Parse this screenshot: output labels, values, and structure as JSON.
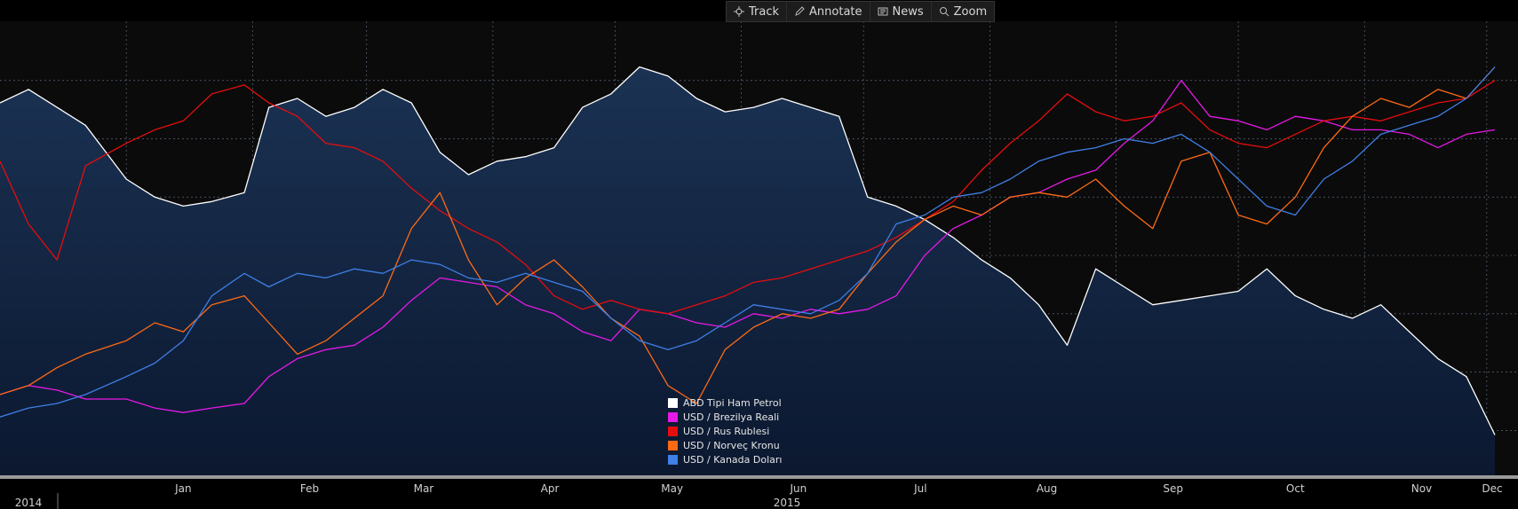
{
  "toolbar": {
    "items": [
      {
        "label": "Track",
        "icon": "crosshair-icon"
      },
      {
        "label": "Annotate",
        "icon": "pencil-icon"
      },
      {
        "label": "News",
        "icon": "news-icon"
      },
      {
        "label": "Zoom",
        "icon": "magnifier-icon"
      }
    ]
  },
  "colors": {
    "background": "#000000",
    "area_top": "#1b3253",
    "area_bottom": "#0b1830",
    "grid": "#5a6a80"
  },
  "chart_data": {
    "type": "line",
    "title": "",
    "xlabel": "",
    "ylabel": "",
    "grid": true,
    "legend_position": "bottom-center",
    "x_range": [
      "2014-12-01",
      "2015-12-03"
    ],
    "x_ticks": [
      "Jan",
      "Feb",
      "Mar",
      "Apr",
      "May",
      "Jun",
      "Jul",
      "Aug",
      "Sep",
      "Oct",
      "Nov",
      "Dec"
    ],
    "year_labels": [
      "2014",
      "2015"
    ],
    "y_range": [
      0,
      100
    ],
    "series": [
      {
        "name": "ABD Tipi Ham Petrol",
        "color": "#ffffff",
        "area": true,
        "points": [
          [
            "2014-12-01",
            83
          ],
          [
            "2014-12-08",
            86
          ],
          [
            "2014-12-15",
            82
          ],
          [
            "2014-12-22",
            78
          ],
          [
            "2015-01-01",
            66
          ],
          [
            "2015-01-08",
            62
          ],
          [
            "2015-01-15",
            60
          ],
          [
            "2015-01-22",
            61
          ],
          [
            "2015-01-30",
            63
          ],
          [
            "2015-02-05",
            82
          ],
          [
            "2015-02-12",
            84
          ],
          [
            "2015-02-19",
            80
          ],
          [
            "2015-02-26",
            82
          ],
          [
            "2015-03-05",
            86
          ],
          [
            "2015-03-12",
            83
          ],
          [
            "2015-03-19",
            72
          ],
          [
            "2015-03-26",
            67
          ],
          [
            "2015-04-02",
            70
          ],
          [
            "2015-04-09",
            71
          ],
          [
            "2015-04-16",
            73
          ],
          [
            "2015-04-23",
            82
          ],
          [
            "2015-04-30",
            85
          ],
          [
            "2015-05-07",
            91
          ],
          [
            "2015-05-14",
            89
          ],
          [
            "2015-05-21",
            84
          ],
          [
            "2015-05-28",
            81
          ],
          [
            "2015-06-04",
            82
          ],
          [
            "2015-06-11",
            84
          ],
          [
            "2015-06-18",
            82
          ],
          [
            "2015-06-25",
            80
          ],
          [
            "2015-07-02",
            62
          ],
          [
            "2015-07-09",
            60
          ],
          [
            "2015-07-16",
            57
          ],
          [
            "2015-07-23",
            53
          ],
          [
            "2015-07-30",
            48
          ],
          [
            "2015-08-06",
            44
          ],
          [
            "2015-08-13",
            38
          ],
          [
            "2015-08-20",
            29
          ],
          [
            "2015-08-27",
            46
          ],
          [
            "2015-09-03",
            42
          ],
          [
            "2015-09-10",
            38
          ],
          [
            "2015-09-17",
            39
          ],
          [
            "2015-09-24",
            40
          ],
          [
            "2015-10-01",
            41
          ],
          [
            "2015-10-08",
            46
          ],
          [
            "2015-10-15",
            40
          ],
          [
            "2015-10-22",
            37
          ],
          [
            "2015-10-29",
            35
          ],
          [
            "2015-11-05",
            38
          ],
          [
            "2015-11-12",
            32
          ],
          [
            "2015-11-19",
            26
          ],
          [
            "2015-11-26",
            22
          ],
          [
            "2015-12-03",
            9
          ]
        ]
      },
      {
        "name": "USD / Brezilya Reali",
        "color": "#e619e6",
        "area": false,
        "points": [
          [
            "2014-12-01",
            18
          ],
          [
            "2014-12-08",
            20
          ],
          [
            "2014-12-15",
            19
          ],
          [
            "2014-12-22",
            17
          ],
          [
            "2015-01-01",
            17
          ],
          [
            "2015-01-08",
            15
          ],
          [
            "2015-01-15",
            14
          ],
          [
            "2015-01-22",
            15
          ],
          [
            "2015-01-30",
            16
          ],
          [
            "2015-02-05",
            22
          ],
          [
            "2015-02-12",
            26
          ],
          [
            "2015-02-19",
            28
          ],
          [
            "2015-02-26",
            29
          ],
          [
            "2015-03-05",
            33
          ],
          [
            "2015-03-12",
            39
          ],
          [
            "2015-03-19",
            44
          ],
          [
            "2015-03-26",
            43
          ],
          [
            "2015-04-02",
            42
          ],
          [
            "2015-04-09",
            38
          ],
          [
            "2015-04-16",
            36
          ],
          [
            "2015-04-23",
            32
          ],
          [
            "2015-04-30",
            30
          ],
          [
            "2015-05-07",
            37
          ],
          [
            "2015-05-14",
            36
          ],
          [
            "2015-05-21",
            34
          ],
          [
            "2015-05-28",
            33
          ],
          [
            "2015-06-04",
            36
          ],
          [
            "2015-06-11",
            35
          ],
          [
            "2015-06-18",
            37
          ],
          [
            "2015-06-25",
            36
          ],
          [
            "2015-07-02",
            37
          ],
          [
            "2015-07-09",
            40
          ],
          [
            "2015-07-16",
            49
          ],
          [
            "2015-07-23",
            55
          ],
          [
            "2015-07-30",
            58
          ],
          [
            "2015-08-06",
            62
          ],
          [
            "2015-08-13",
            63
          ],
          [
            "2015-08-20",
            66
          ],
          [
            "2015-08-27",
            68
          ],
          [
            "2015-09-03",
            74
          ],
          [
            "2015-09-10",
            79
          ],
          [
            "2015-09-17",
            88
          ],
          [
            "2015-09-24",
            80
          ],
          [
            "2015-10-01",
            79
          ],
          [
            "2015-10-08",
            77
          ],
          [
            "2015-10-15",
            80
          ],
          [
            "2015-10-22",
            79
          ],
          [
            "2015-10-29",
            77
          ],
          [
            "2015-11-05",
            77
          ],
          [
            "2015-11-12",
            76
          ],
          [
            "2015-11-19",
            73
          ],
          [
            "2015-11-26",
            76
          ],
          [
            "2015-12-03",
            77
          ]
        ]
      },
      {
        "name": "USD / Rus Rublesi",
        "color": "#e60d0d",
        "area": false,
        "points": [
          [
            "2014-12-01",
            70
          ],
          [
            "2014-12-08",
            56
          ],
          [
            "2014-12-15",
            48
          ],
          [
            "2014-12-22",
            69
          ],
          [
            "2015-01-01",
            74
          ],
          [
            "2015-01-08",
            77
          ],
          [
            "2015-01-15",
            79
          ],
          [
            "2015-01-22",
            85
          ],
          [
            "2015-01-30",
            87
          ],
          [
            "2015-02-05",
            83
          ],
          [
            "2015-02-12",
            80
          ],
          [
            "2015-02-19",
            74
          ],
          [
            "2015-02-26",
            73
          ],
          [
            "2015-03-05",
            70
          ],
          [
            "2015-03-12",
            64
          ],
          [
            "2015-03-19",
            59
          ],
          [
            "2015-03-26",
            55
          ],
          [
            "2015-04-02",
            52
          ],
          [
            "2015-04-09",
            47
          ],
          [
            "2015-04-16",
            40
          ],
          [
            "2015-04-23",
            37
          ],
          [
            "2015-04-30",
            39
          ],
          [
            "2015-05-07",
            37
          ],
          [
            "2015-05-14",
            36
          ],
          [
            "2015-05-21",
            38
          ],
          [
            "2015-05-28",
            40
          ],
          [
            "2015-06-04",
            43
          ],
          [
            "2015-06-11",
            44
          ],
          [
            "2015-06-18",
            46
          ],
          [
            "2015-06-25",
            48
          ],
          [
            "2015-07-02",
            50
          ],
          [
            "2015-07-09",
            53
          ],
          [
            "2015-07-16",
            57
          ],
          [
            "2015-07-23",
            61
          ],
          [
            "2015-07-30",
            68
          ],
          [
            "2015-08-06",
            74
          ],
          [
            "2015-08-13",
            79
          ],
          [
            "2015-08-20",
            85
          ],
          [
            "2015-08-27",
            81
          ],
          [
            "2015-09-03",
            79
          ],
          [
            "2015-09-10",
            80
          ],
          [
            "2015-09-17",
            83
          ],
          [
            "2015-09-24",
            77
          ],
          [
            "2015-10-01",
            74
          ],
          [
            "2015-10-08",
            73
          ],
          [
            "2015-10-15",
            76
          ],
          [
            "2015-10-22",
            79
          ],
          [
            "2015-10-29",
            80
          ],
          [
            "2015-11-05",
            79
          ],
          [
            "2015-11-12",
            81
          ],
          [
            "2015-11-19",
            83
          ],
          [
            "2015-11-26",
            84
          ],
          [
            "2015-12-03",
            88
          ]
        ]
      },
      {
        "name": "USD / Norveç Kronu",
        "color": "#ff6a14",
        "area": false,
        "points": [
          [
            "2014-12-01",
            18
          ],
          [
            "2014-12-08",
            20
          ],
          [
            "2014-12-15",
            24
          ],
          [
            "2014-12-22",
            27
          ],
          [
            "2015-01-01",
            30
          ],
          [
            "2015-01-08",
            34
          ],
          [
            "2015-01-15",
            32
          ],
          [
            "2015-01-22",
            38
          ],
          [
            "2015-01-30",
            40
          ],
          [
            "2015-02-05",
            34
          ],
          [
            "2015-02-12",
            27
          ],
          [
            "2015-02-19",
            30
          ],
          [
            "2015-02-26",
            35
          ],
          [
            "2015-03-05",
            40
          ],
          [
            "2015-03-12",
            55
          ],
          [
            "2015-03-19",
            63
          ],
          [
            "2015-03-26",
            48
          ],
          [
            "2015-04-02",
            38
          ],
          [
            "2015-04-09",
            44
          ],
          [
            "2015-04-16",
            48
          ],
          [
            "2015-04-23",
            42
          ],
          [
            "2015-04-30",
            35
          ],
          [
            "2015-05-07",
            31
          ],
          [
            "2015-05-14",
            20
          ],
          [
            "2015-05-21",
            16
          ],
          [
            "2015-05-28",
            28
          ],
          [
            "2015-06-04",
            33
          ],
          [
            "2015-06-11",
            36
          ],
          [
            "2015-06-18",
            35
          ],
          [
            "2015-06-25",
            37
          ],
          [
            "2015-07-02",
            45
          ],
          [
            "2015-07-09",
            52
          ],
          [
            "2015-07-16",
            57
          ],
          [
            "2015-07-23",
            60
          ],
          [
            "2015-07-30",
            58
          ],
          [
            "2015-08-06",
            62
          ],
          [
            "2015-08-13",
            63
          ],
          [
            "2015-08-20",
            62
          ],
          [
            "2015-08-27",
            66
          ],
          [
            "2015-09-03",
            60
          ],
          [
            "2015-09-10",
            55
          ],
          [
            "2015-09-17",
            70
          ],
          [
            "2015-09-24",
            72
          ],
          [
            "2015-10-01",
            58
          ],
          [
            "2015-10-08",
            56
          ],
          [
            "2015-10-15",
            62
          ],
          [
            "2015-10-22",
            73
          ],
          [
            "2015-10-29",
            80
          ],
          [
            "2015-11-05",
            84
          ],
          [
            "2015-11-12",
            82
          ],
          [
            "2015-11-19",
            86
          ],
          [
            "2015-11-26",
            84
          ],
          [
            "2015-12-03",
            91
          ]
        ]
      },
      {
        "name": "USD / Kanada Doları",
        "color": "#3f7fe6",
        "area": false,
        "points": [
          [
            "2014-12-01",
            13
          ],
          [
            "2014-12-08",
            15
          ],
          [
            "2014-12-15",
            16
          ],
          [
            "2014-12-22",
            18
          ],
          [
            "2015-01-01",
            22
          ],
          [
            "2015-01-08",
            25
          ],
          [
            "2015-01-15",
            30
          ],
          [
            "2015-01-22",
            40
          ],
          [
            "2015-01-30",
            45
          ],
          [
            "2015-02-05",
            42
          ],
          [
            "2015-02-12",
            45
          ],
          [
            "2015-02-19",
            44
          ],
          [
            "2015-02-26",
            46
          ],
          [
            "2015-03-05",
            45
          ],
          [
            "2015-03-12",
            48
          ],
          [
            "2015-03-19",
            47
          ],
          [
            "2015-03-26",
            44
          ],
          [
            "2015-04-02",
            43
          ],
          [
            "2015-04-09",
            45
          ],
          [
            "2015-04-16",
            43
          ],
          [
            "2015-04-23",
            41
          ],
          [
            "2015-04-30",
            35
          ],
          [
            "2015-05-07",
            30
          ],
          [
            "2015-05-14",
            28
          ],
          [
            "2015-05-21",
            30
          ],
          [
            "2015-05-28",
            34
          ],
          [
            "2015-06-04",
            38
          ],
          [
            "2015-06-11",
            37
          ],
          [
            "2015-06-18",
            36
          ],
          [
            "2015-06-25",
            39
          ],
          [
            "2015-07-02",
            45
          ],
          [
            "2015-07-09",
            56
          ],
          [
            "2015-07-16",
            58
          ],
          [
            "2015-07-23",
            62
          ],
          [
            "2015-07-30",
            63
          ],
          [
            "2015-08-06",
            66
          ],
          [
            "2015-08-13",
            70
          ],
          [
            "2015-08-20",
            72
          ],
          [
            "2015-08-27",
            73
          ],
          [
            "2015-09-03",
            75
          ],
          [
            "2015-09-10",
            74
          ],
          [
            "2015-09-17",
            76
          ],
          [
            "2015-09-24",
            72
          ],
          [
            "2015-10-01",
            66
          ],
          [
            "2015-10-08",
            60
          ],
          [
            "2015-10-15",
            58
          ],
          [
            "2015-10-22",
            66
          ],
          [
            "2015-10-29",
            70
          ],
          [
            "2015-11-05",
            76
          ],
          [
            "2015-11-12",
            78
          ],
          [
            "2015-11-19",
            80
          ],
          [
            "2015-11-26",
            84
          ],
          [
            "2015-12-03",
            91
          ]
        ]
      }
    ]
  }
}
